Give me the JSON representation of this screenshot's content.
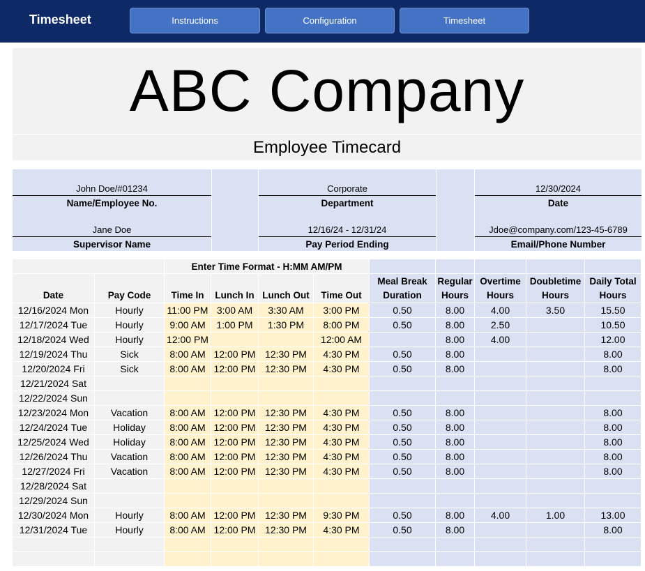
{
  "app": {
    "title": "Timesheet"
  },
  "nav": [
    {
      "label": "Instructions"
    },
    {
      "label": "Configuration"
    },
    {
      "label": "Timesheet"
    }
  ],
  "company": {
    "name": "ABC Company",
    "subtitle": "Employee Timecard"
  },
  "info": {
    "employee": {
      "value": "John Doe/#01234",
      "label": "Name/Employee No."
    },
    "department": {
      "value": "Corporate",
      "label": "Department"
    },
    "date": {
      "value": "12/30/2024",
      "label": "Date"
    },
    "supervisor": {
      "value": "Jane Doe",
      "label": "Supervisor Name"
    },
    "pay_period": {
      "value": "12/16/24 - 12/31/24",
      "label": "Pay Period Ending"
    },
    "contact": {
      "value": "Jdoe@company.com/123-45-6789",
      "label": "Email/Phone Number"
    }
  },
  "table": {
    "time_format_note": "Enter Time Format - H:MM AM/PM",
    "headers": [
      [
        "Date"
      ],
      [
        "Pay Code"
      ],
      [
        "Time In"
      ],
      [
        "Lunch In"
      ],
      [
        "Lunch Out"
      ],
      [
        "Time Out"
      ],
      [
        "Meal Break",
        "Duration"
      ],
      [
        "Regular",
        "Hours"
      ],
      [
        "Overtime",
        "Hours"
      ],
      [
        "Doubletime",
        "Hours"
      ],
      [
        "Daily Total",
        "Hours"
      ]
    ],
    "rows": [
      [
        "12/16/2024 Mon",
        "Hourly",
        "11:00 PM",
        "3:00 AM",
        "3:30 AM",
        "3:00 PM",
        "0.50",
        "8.00",
        "4.00",
        "3.50",
        "15.50"
      ],
      [
        "12/17/2024 Tue",
        "Hourly",
        "9:00 AM",
        "1:00 PM",
        "1:30 PM",
        "8:00 PM",
        "0.50",
        "8.00",
        "2.50",
        "",
        "10.50"
      ],
      [
        "12/18/2024 Wed",
        "Hourly",
        "12:00 PM",
        "",
        "",
        "12:00 AM",
        "",
        "8.00",
        "4.00",
        "",
        "12.00"
      ],
      [
        "12/19/2024 Thu",
        "Sick",
        "8:00 AM",
        "12:00 PM",
        "12:30 PM",
        "4:30 PM",
        "0.50",
        "8.00",
        "",
        "",
        "8.00"
      ],
      [
        "12/20/2024 Fri",
        "Sick",
        "8:00 AM",
        "12:00 PM",
        "12:30 PM",
        "4:30 PM",
        "0.50",
        "8.00",
        "",
        "",
        "8.00"
      ],
      [
        "12/21/2024 Sat",
        "",
        "",
        "",
        "",
        "",
        "",
        "",
        "",
        "",
        ""
      ],
      [
        "12/22/2024 Sun",
        "",
        "",
        "",
        "",
        "",
        "",
        "",
        "",
        "",
        ""
      ],
      [
        "12/23/2024 Mon",
        "Vacation",
        "8:00 AM",
        "12:00 PM",
        "12:30 PM",
        "4:30 PM",
        "0.50",
        "8.00",
        "",
        "",
        "8.00"
      ],
      [
        "12/24/2024 Tue",
        "Holiday",
        "8:00 AM",
        "12:00 PM",
        "12:30 PM",
        "4:30 PM",
        "0.50",
        "8.00",
        "",
        "",
        "8.00"
      ],
      [
        "12/25/2024 Wed",
        "Holiday",
        "8:00 AM",
        "12:00 PM",
        "12:30 PM",
        "4:30 PM",
        "0.50",
        "8.00",
        "",
        "",
        "8.00"
      ],
      [
        "12/26/2024 Thu",
        "Vacation",
        "8:00 AM",
        "12:00 PM",
        "12:30 PM",
        "4:30 PM",
        "0.50",
        "8.00",
        "",
        "",
        "8.00"
      ],
      [
        "12/27/2024 Fri",
        "Vacation",
        "8:00 AM",
        "12:00 PM",
        "12:30 PM",
        "4:30 PM",
        "0.50",
        "8.00",
        "",
        "",
        "8.00"
      ],
      [
        "12/28/2024 Sat",
        "",
        "",
        "",
        "",
        "",
        "",
        "",
        "",
        "",
        ""
      ],
      [
        "12/29/2024 Sun",
        "",
        "",
        "",
        "",
        "",
        "",
        "",
        "",
        "",
        ""
      ],
      [
        "12/30/2024 Mon",
        "Hourly",
        "8:00 AM",
        "12:00 PM",
        "12:30 PM",
        "9:30 PM",
        "0.50",
        "8.00",
        "4.00",
        "1.00",
        "13.00"
      ],
      [
        "12/31/2024 Tue",
        "Hourly",
        "8:00 AM",
        "12:00 PM",
        "12:30 PM",
        "4:30 PM",
        "0.50",
        "8.00",
        "",
        "",
        "8.00"
      ],
      [
        "",
        "",
        "",
        "",
        "",
        "",
        "",
        "",
        "",
        "",
        ""
      ],
      [
        "",
        "",
        "",
        "",
        "",
        "",
        "",
        "",
        "",
        "",
        ""
      ]
    ]
  },
  "colors": {
    "header_bar": "#0e2a66",
    "nav_button": "#4472c4",
    "gray_cell": "#f2f2f2",
    "time_entry_cell": "#fff2cc",
    "calc_cell": "#dae1f3"
  }
}
